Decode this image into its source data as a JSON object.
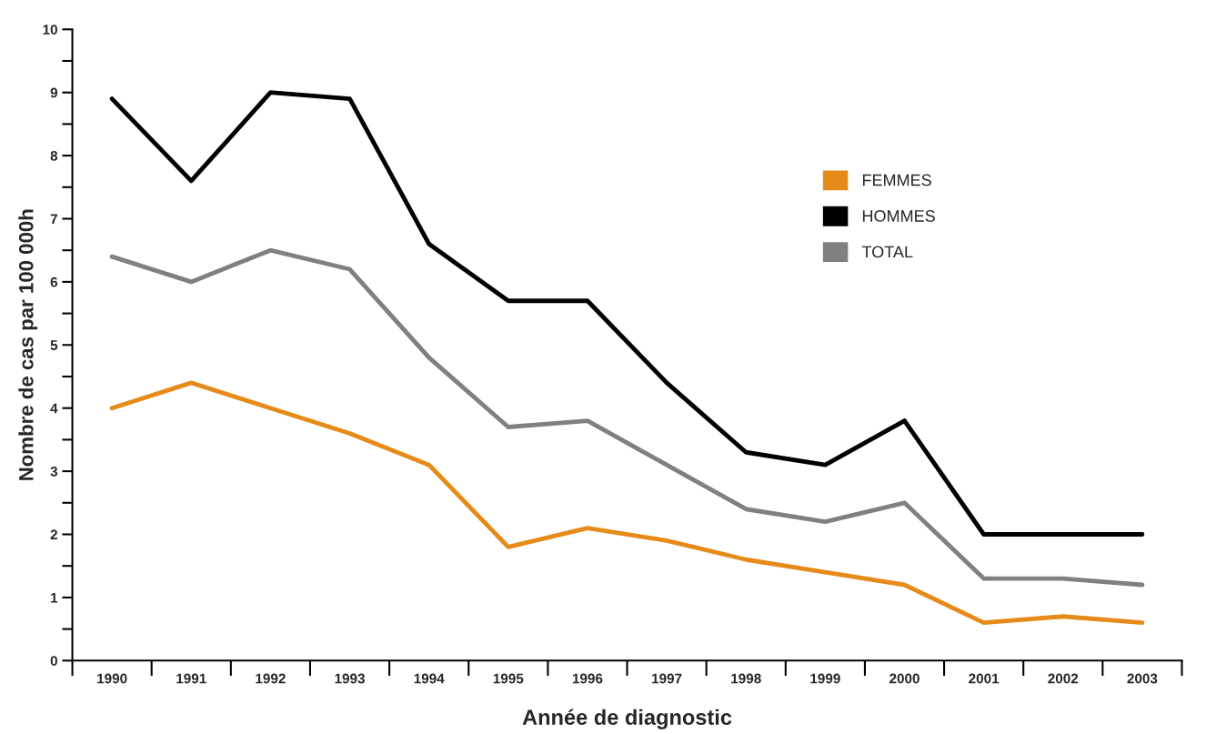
{
  "chart_data": {
    "type": "line",
    "xlabel": "Année de diagnostic",
    "ylabel": "Nombre de cas par 100 000h",
    "categories": [
      "1990",
      "1991",
      "1992",
      "1993",
      "1994",
      "1995",
      "1996",
      "1997",
      "1998",
      "1999",
      "2000",
      "2001",
      "2002",
      "2003"
    ],
    "series": [
      {
        "name": "FEMMES",
        "color": "#e68a1a",
        "values": [
          4.0,
          4.4,
          4.0,
          3.6,
          3.1,
          1.8,
          2.1,
          1.9,
          1.6,
          1.4,
          1.2,
          0.6,
          0.7,
          0.6
        ]
      },
      {
        "name": "HOMMES",
        "color": "#000000",
        "values": [
          8.9,
          7.6,
          9.0,
          8.9,
          6.6,
          5.7,
          5.7,
          4.4,
          3.3,
          3.1,
          3.8,
          2.0,
          2.0,
          2.0
        ]
      },
      {
        "name": "TOTAL",
        "color": "#808080",
        "values": [
          6.4,
          6.0,
          6.5,
          6.2,
          4.8,
          3.7,
          3.8,
          3.1,
          2.4,
          2.2,
          2.5,
          1.3,
          1.3,
          1.2
        ]
      }
    ],
    "ylim": [
      0,
      10
    ],
    "yticks": [
      0,
      {
        "value": 0.5,
        "label": null
      },
      1,
      {
        "value": 1.5,
        "label": null
      },
      2,
      {
        "value": 2.5,
        "label": null
      },
      3,
      {
        "value": 3.5,
        "label": null
      },
      4,
      {
        "value": 4.5,
        "label": null
      },
      5,
      {
        "value": 5.5,
        "label": null
      },
      6,
      {
        "value": 6.5,
        "label": null
      },
      7,
      {
        "value": 7.5,
        "label": null
      },
      8,
      {
        "value": 8.5,
        "label": null
      },
      9,
      {
        "value": 9.5,
        "label": null
      },
      10
    ],
    "grid": false,
    "legend": "top right",
    "marker": "none",
    "line_style": "solid"
  }
}
